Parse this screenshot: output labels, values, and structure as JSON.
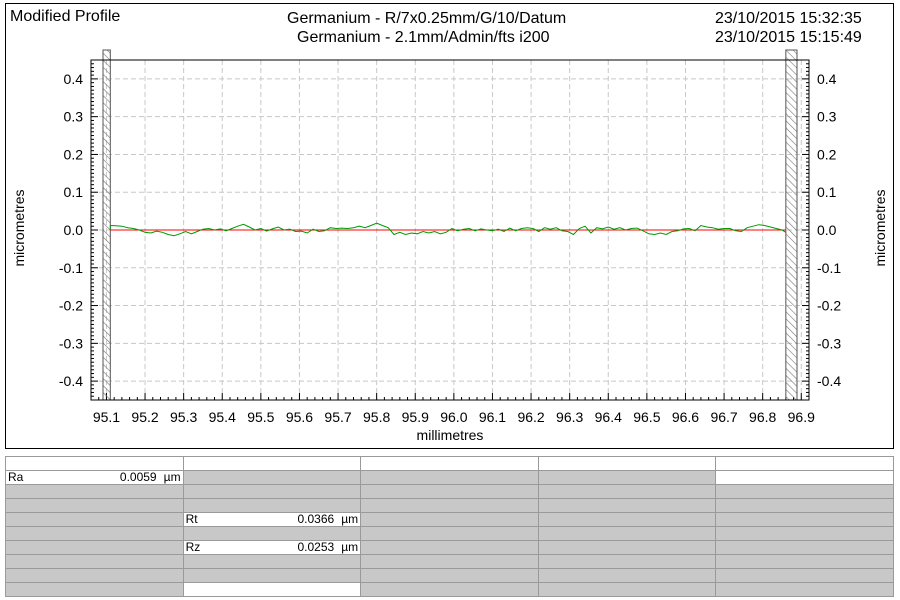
{
  "header": {
    "left": "Modified Profile",
    "center_line1": "Germanium - R/7x0.25mm/G/10/Datum",
    "center_line2": "Germanium - 2.1mm/Admin/fts i200",
    "right_line1": "23/10/2015 15:32:35",
    "right_line2": "23/10/2015 15:15:49"
  },
  "chart_data": {
    "type": "line",
    "title": "Modified Profile",
    "xlabel": "millimetres",
    "ylabel": "micrometres",
    "ylabel_right": "micrometres",
    "xlim": [
      95.06,
      96.92
    ],
    "ylim": [
      -0.45,
      0.45
    ],
    "x_ticks": [
      "95.1",
      "95.2",
      "95.3",
      "95.4",
      "95.5",
      "95.6",
      "95.7",
      "95.8",
      "95.9",
      "96.0",
      "96.1",
      "96.2",
      "96.3",
      "96.4",
      "96.5",
      "96.6",
      "96.7",
      "96.8",
      "96.9"
    ],
    "y_ticks": [
      "0.4",
      "0.3",
      "0.2",
      "0.1",
      "0.0",
      "-0.1",
      "-0.2",
      "-0.3",
      "-0.4"
    ],
    "grid": true,
    "excluded_regions": [
      [
        95.04,
        95.11
      ],
      [
        96.86,
        96.92
      ]
    ],
    "reference_line": {
      "y": 0.0,
      "x_range": [
        95.11,
        96.86
      ],
      "color": "#ff0000"
    },
    "series": [
      {
        "color": "#009900",
        "x": [
          95.11,
          95.125,
          95.14,
          95.155,
          95.17,
          95.185,
          95.2,
          95.215,
          95.23,
          95.245,
          95.26,
          95.275,
          95.29,
          95.305,
          95.32,
          95.335,
          95.35,
          95.365,
          95.38,
          95.395,
          95.41,
          95.425,
          95.44,
          95.455,
          95.47,
          95.485,
          95.5,
          95.515,
          95.53,
          95.545,
          95.56,
          95.575,
          95.59,
          95.605,
          95.62,
          95.635,
          95.65,
          95.665,
          95.68,
          95.695,
          95.71,
          95.725,
          95.74,
          95.755,
          95.77,
          95.785,
          95.8,
          95.815,
          95.83,
          95.845,
          95.86,
          95.875,
          95.89,
          95.905,
          95.92,
          95.935,
          95.95,
          95.965,
          95.98,
          95.995,
          96.01,
          96.025,
          96.04,
          96.055,
          96.07,
          96.085,
          96.1,
          96.115,
          96.13,
          96.145,
          96.16,
          96.175,
          96.19,
          96.205,
          96.22,
          96.235,
          96.25,
          96.265,
          96.28,
          96.295,
          96.31,
          96.325,
          96.34,
          96.355,
          96.37,
          96.385,
          96.4,
          96.415,
          96.43,
          96.445,
          96.46,
          96.475,
          96.49,
          96.505,
          96.52,
          96.535,
          96.55,
          96.565,
          96.58,
          96.595,
          96.61,
          96.625,
          96.64,
          96.655,
          96.67,
          96.685,
          96.7,
          96.715,
          96.73,
          96.745,
          96.76,
          96.775,
          96.79,
          96.805,
          96.82,
          96.835,
          96.85,
          96.86
        ],
        "y": [
          0.012,
          0.011,
          0.01,
          0.006,
          0.004,
          0.0,
          -0.006,
          -0.008,
          -0.003,
          -0.006,
          -0.012,
          -0.015,
          -0.01,
          -0.004,
          -0.01,
          -0.004,
          0.002,
          0.004,
          0.0,
          0.003,
          -0.002,
          0.004,
          0.01,
          0.015,
          0.008,
          0.0,
          0.004,
          -0.003,
          0.003,
          0.008,
          0.0,
          0.002,
          -0.004,
          -0.003,
          -0.008,
          0.002,
          -0.004,
          -0.002,
          0.006,
          0.004,
          0.005,
          0.004,
          0.006,
          0.01,
          0.006,
          0.012,
          0.018,
          0.012,
          0.006,
          -0.012,
          -0.006,
          -0.012,
          -0.008,
          -0.01,
          -0.004,
          -0.008,
          -0.004,
          -0.01,
          -0.006,
          0.004,
          -0.002,
          0.002,
          0.004,
          -0.002,
          0.003,
          0.0,
          -0.002,
          0.002,
          -0.004,
          0.005,
          -0.002,
          0.004,
          0.006,
          0.004,
          -0.004,
          0.006,
          0.002,
          0.006,
          -0.002,
          -0.004,
          -0.012,
          0.004,
          0.01,
          -0.008,
          0.006,
          0.003,
          0.008,
          0.002,
          0.006,
          0.0,
          0.004,
          0.005,
          -0.002,
          -0.01,
          -0.012,
          -0.008,
          -0.012,
          -0.004,
          -0.002,
          0.003,
          0.004,
          -0.002,
          0.012,
          0.008,
          0.006,
          0.002,
          0.004,
          0.004,
          -0.002,
          -0.004,
          0.006,
          0.01,
          0.014,
          0.012,
          0.008,
          0.004,
          0.0,
          -0.006
        ]
      }
    ]
  },
  "parameters": {
    "ra": {
      "name": "Ra",
      "value": "0.0059",
      "unit": "µm"
    },
    "rt": {
      "name": "Rt",
      "value": "0.0366",
      "unit": "µm"
    },
    "rz": {
      "name": "Rz",
      "value": "0.0253",
      "unit": "µm"
    }
  }
}
